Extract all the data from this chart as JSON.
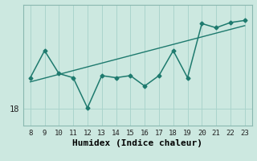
{
  "x": [
    8,
    9,
    10,
    11,
    12,
    13,
    14,
    15,
    16,
    17,
    18,
    19,
    20,
    21,
    22,
    23
  ],
  "y": [
    19.5,
    20.8,
    19.7,
    19.5,
    18.05,
    19.6,
    19.5,
    19.6,
    19.1,
    19.6,
    20.8,
    19.5,
    22.1,
    21.9,
    22.15,
    22.25
  ],
  "trend_x": [
    8,
    23
  ],
  "trend_y": [
    19.3,
    22.0
  ],
  "xlabel": "Humidex (Indice chaleur)",
  "ytick_label": "18",
  "ytick_value": 18,
  "bg_color": "#cce8e0",
  "line_color": "#1e7a6e",
  "grid_color": "#aad4cc",
  "spine_color": "#8ab8b0",
  "xlim": [
    7.5,
    23.5
  ],
  "ylim": [
    17.2,
    23.0
  ]
}
